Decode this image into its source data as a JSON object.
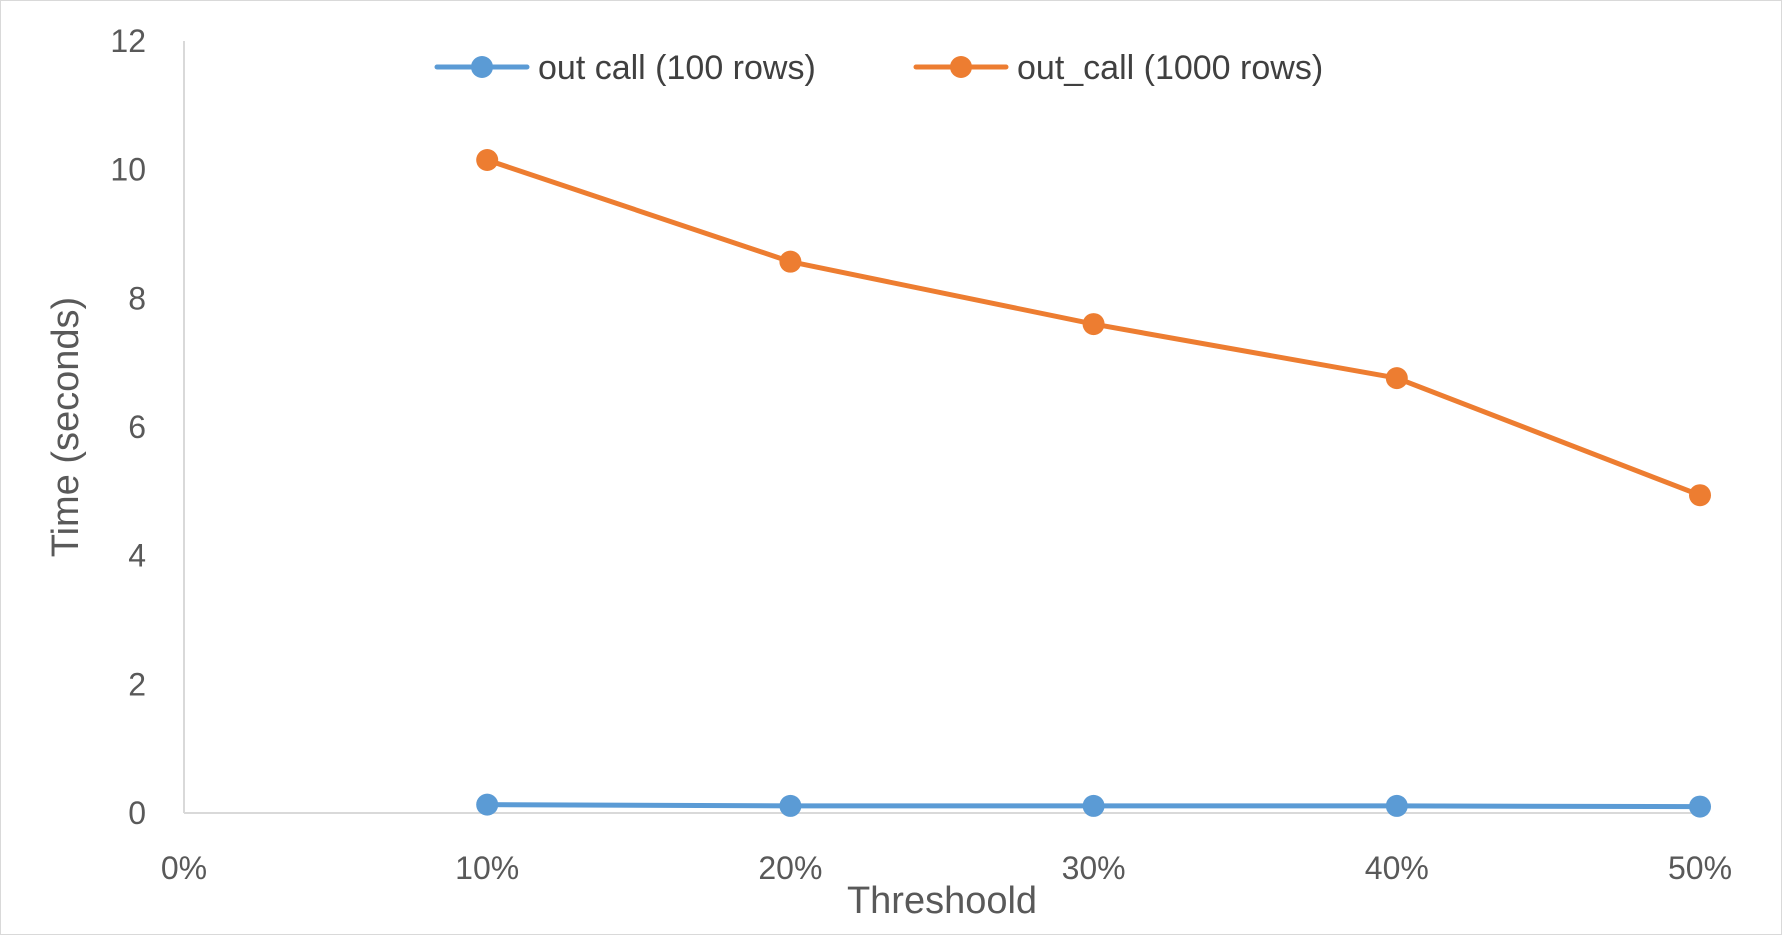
{
  "chart_data": {
    "type": "line",
    "title": "",
    "xlabel": "Threshoold",
    "ylabel": "Time (seconds)",
    "x_categories": [
      "0%",
      "10%",
      "20%",
      "30%",
      "40%",
      "50%"
    ],
    "y_ticks": [
      "0",
      "2",
      "4",
      "6",
      "8",
      "10",
      "12"
    ],
    "ylim": [
      0,
      12
    ],
    "grid": false,
    "legend_position": "top-center",
    "series": [
      {
        "name": "out call (100 rows)",
        "color": "#5b9bd5",
        "values": [
          null,
          0.13,
          0.11,
          0.11,
          0.11,
          0.1
        ]
      },
      {
        "name": "out_call (1000 rows)",
        "color": "#ed7d31",
        "values": [
          null,
          10.15,
          8.57,
          7.6,
          6.76,
          4.94
        ]
      }
    ]
  }
}
